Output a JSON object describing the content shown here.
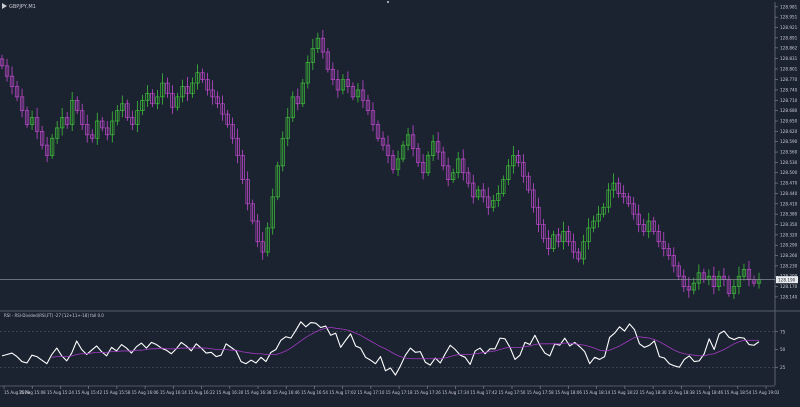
{
  "window": {
    "symbol_label": "GBPJPY,M1",
    "grip_icon": "resize-grip-icon",
    "arrow_icon": "symbol-arrow-icon"
  },
  "colors": {
    "background": "#1b2230",
    "axis_text": "#c9ccd3",
    "axis_line": "#8b9099",
    "bull_candle": "#3fbf3a",
    "bear_candle": "#c24ad0",
    "price_line": "#9aa0a8",
    "price_tag_bg": "#e9ecef",
    "indicator_line": "#ffffff",
    "signal_line": "#a23cc4",
    "level_line": "#5d6470"
  },
  "chart_data": [
    {
      "type": "candlestick",
      "title": "GBPJPY,M1",
      "ylim": [
        128.105,
        128.995
      ],
      "y_ticks": [
        "128.981",
        "128.951",
        "128.921",
        "128.891",
        "128.862",
        "128.831",
        "128.801",
        "128.770",
        "128.740",
        "128.710",
        "128.680",
        "128.650",
        "128.620",
        "128.590",
        "128.560",
        "128.530",
        "128.500",
        "128.470",
        "128.440",
        "128.410",
        "128.380",
        "128.350",
        "128.320",
        "128.290",
        "128.260",
        "128.230",
        "128.200",
        "128.170",
        "128.140"
      ],
      "current_price_label": "128.190",
      "current_price": 128.19,
      "close": [
        128.81,
        128.78,
        128.75,
        128.72,
        128.68,
        128.64,
        128.66,
        128.62,
        128.58,
        128.55,
        128.6,
        128.63,
        128.66,
        128.64,
        128.71,
        128.68,
        128.64,
        128.61,
        128.6,
        128.65,
        128.63,
        128.61,
        128.65,
        128.68,
        128.7,
        128.66,
        128.64,
        128.68,
        128.71,
        128.73,
        128.7,
        128.72,
        128.76,
        128.73,
        128.69,
        128.72,
        128.75,
        128.73,
        128.76,
        128.79,
        128.77,
        128.74,
        128.72,
        128.7,
        128.67,
        128.64,
        128.6,
        128.55,
        128.48,
        128.41,
        128.36,
        128.3,
        128.27,
        128.34,
        128.43,
        128.52,
        128.6,
        128.66,
        128.72,
        128.7,
        128.76,
        128.82,
        128.86,
        128.89,
        128.85,
        128.8,
        128.77,
        128.74,
        128.77,
        128.75,
        128.72,
        128.74,
        128.71,
        128.68,
        128.64,
        128.6,
        128.58,
        128.55,
        128.51,
        128.54,
        128.58,
        128.61,
        128.57,
        128.53,
        128.5,
        128.55,
        128.59,
        128.56,
        128.52,
        128.48,
        128.5,
        128.54,
        128.5,
        128.47,
        128.43,
        128.45,
        128.43,
        128.4,
        128.42,
        128.44,
        128.48,
        128.52,
        128.55,
        128.53,
        128.49,
        128.45,
        128.4,
        128.35,
        128.31,
        128.28,
        128.32,
        128.3,
        128.33,
        128.3,
        128.27,
        128.25,
        128.3,
        128.34,
        128.36,
        128.38,
        128.4,
        128.45,
        128.47,
        128.44,
        128.43,
        128.41,
        128.38,
        128.35,
        128.33,
        128.36,
        128.33,
        128.3,
        128.28,
        128.26,
        128.23,
        128.2,
        128.17,
        128.16,
        128.18,
        128.21,
        128.19,
        128.2,
        128.17,
        128.2,
        128.19,
        128.15,
        128.17,
        128.2,
        128.22,
        128.19,
        128.18,
        128.19
      ],
      "x_tick_labels": [
        "15 Aug 2019",
        "15 Aug 15:08",
        "15 Aug 15:24",
        "15 Aug 15:42",
        "15 Aug 15:58",
        "15 Aug 16:06",
        "15 Aug 16:14",
        "15 Aug 16:22",
        "15 Aug 16:30",
        "15 Aug 16:38",
        "15 Aug 16:46",
        "15 Aug 16:54",
        "15 Aug 17:02",
        "15 Aug 17:10",
        "15 Aug 17:18",
        "15 Aug 17:26",
        "15 Aug 17:34",
        "15 Aug 17:42",
        "15 Aug 17:50",
        "15 Aug 17:58",
        "15 Aug 18:06",
        "15 Aug 18:14",
        "15 Aug 18:22",
        "15 Aug 18:30",
        "15 Aug 18:38",
        "15 Aug 18:46",
        "15 Aug 18:54",
        "15 Aug 19:02"
      ]
    },
    {
      "type": "line",
      "title": "RSI - RSI-Divided(RSI,FT) -27 [12+11+-18] fall 0.0",
      "ylim": [
        0,
        100
      ],
      "y_ticks": [
        "75",
        "50",
        "25"
      ],
      "levels": [
        75,
        25
      ],
      "series": [
        {
          "values": [
            41,
            43,
            45,
            40,
            33,
            31,
            42,
            40,
            35,
            30,
            43,
            52,
            41,
            34,
            45,
            62,
            50,
            43,
            49,
            55,
            47,
            41,
            53,
            48,
            57,
            52,
            45,
            54,
            59,
            52,
            60,
            57,
            52,
            49,
            44,
            51,
            60,
            55,
            48,
            58,
            52,
            45,
            46,
            40,
            42,
            58,
            53,
            48,
            33,
            30,
            35,
            31,
            39,
            33,
            46,
            50,
            63,
            68,
            66,
            77,
            89,
            82,
            88,
            87,
            81,
            83,
            70,
            73,
            53,
            63,
            72,
            55,
            52,
            39,
            35,
            30,
            40,
            20,
            24,
            14,
            27,
            42,
            52,
            46,
            47,
            32,
            28,
            38,
            31,
            44,
            56,
            50,
            42,
            39,
            29,
            48,
            52,
            44,
            51,
            51,
            66,
            65,
            53,
            36,
            42,
            60,
            57,
            70,
            56,
            45,
            41,
            58,
            56,
            66,
            55,
            60,
            54,
            47,
            30,
            39,
            36,
            40,
            67,
            73,
            82,
            76,
            86,
            78,
            58,
            53,
            56,
            62,
            40,
            38,
            30,
            27,
            25,
            36,
            41,
            33,
            34,
            44,
            65,
            50,
            72,
            76,
            67,
            64,
            67,
            66,
            57,
            56,
            61
          ]
        },
        {
          "values": [
            null,
            null,
            null,
            null,
            null,
            null,
            null,
            null,
            null,
            null,
            39,
            40,
            40,
            40,
            41,
            43,
            44,
            44,
            45,
            46,
            46,
            46,
            47,
            47,
            48,
            48,
            48,
            49,
            49,
            50,
            51,
            51,
            52,
            51,
            51,
            51,
            52,
            52,
            52,
            52,
            52,
            52,
            51,
            50,
            50,
            50,
            49,
            49,
            47,
            46,
            45,
            44,
            44,
            43,
            43,
            43,
            45,
            48,
            52,
            57,
            62,
            67,
            71,
            75,
            78,
            80,
            81,
            80,
            79,
            78,
            76,
            73,
            70,
            66,
            62,
            58,
            54,
            51,
            47,
            43,
            40,
            38,
            37,
            37,
            37,
            37,
            37,
            37,
            37,
            38,
            40,
            42,
            43,
            43,
            43,
            44,
            45,
            46,
            47,
            48,
            50,
            52,
            53,
            53,
            53,
            54,
            55,
            57,
            58,
            58,
            58,
            58,
            58,
            59,
            59,
            58,
            57,
            56,
            54,
            52,
            49,
            48,
            49,
            52,
            55,
            59,
            63,
            67,
            68,
            67,
            66,
            64,
            61,
            57,
            53,
            49,
            46,
            44,
            43,
            42,
            41,
            41,
            43,
            44,
            47,
            50,
            54,
            58,
            61,
            63,
            63,
            63,
            63
          ]
        }
      ]
    }
  ]
}
